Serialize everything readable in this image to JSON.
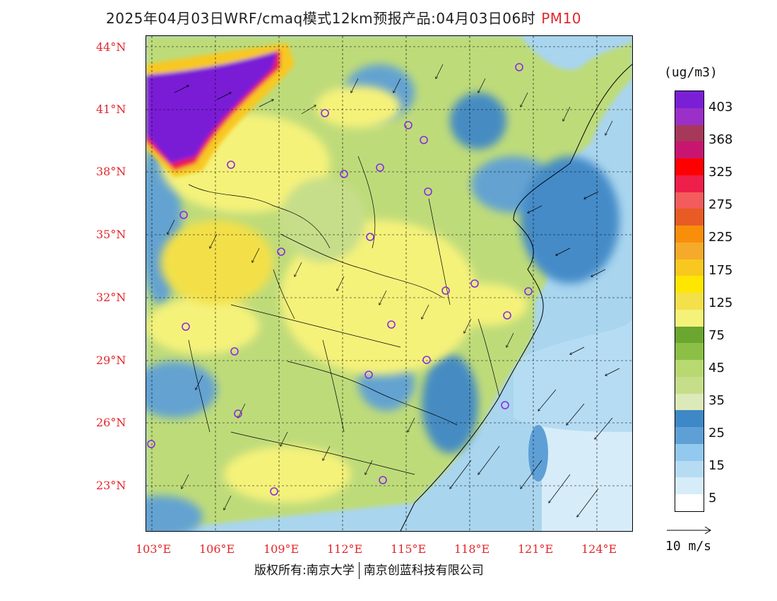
{
  "title": {
    "main": "2025年04月03日WRF/cmaq模式12km预报产品:04月03日06时",
    "pollutant": "PM10"
  },
  "map": {
    "lat_labels": [
      "44°N",
      "41°N",
      "38°N",
      "35°N",
      "32°N",
      "29°N",
      "26°N",
      "23°N"
    ],
    "lon_labels": [
      "103°E",
      "106°E",
      "109°E",
      "112°E",
      "115°E",
      "118°E",
      "121°E",
      "124°E"
    ],
    "colors": {
      "sea": "#a9d5ee",
      "label": "#e3262b"
    }
  },
  "colorbar": {
    "unit": "(ug/m3)",
    "labels": [
      "403",
      "368",
      "325",
      "275",
      "225",
      "175",
      "125",
      "75",
      "45",
      "35",
      "25",
      "15",
      "5"
    ],
    "colors": [
      "#7a1fd6",
      "#9b30c8",
      "#a6395a",
      "#c81670",
      "#ff0000",
      "#ee1f4a",
      "#f35c5c",
      "#e85b25",
      "#f98e0a",
      "#f6aa2a",
      "#f8c820",
      "#ffe600",
      "#f3e04a",
      "#f5f27a",
      "#6aa630",
      "#8bbf45",
      "#b8d870",
      "#c6de8a",
      "#dce9b8",
      "#3f88c7",
      "#5ea0d6",
      "#93c9ee",
      "#b6dcf4",
      "#d7ecf9",
      "#ffffff"
    ]
  },
  "wind_legend": {
    "label": "10 m/s"
  },
  "copyright": {
    "left": "版权所有:南京大学",
    "right": "南京创蓝科技有限公司"
  }
}
